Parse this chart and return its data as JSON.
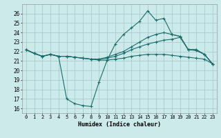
{
  "background_color": "#cceaea",
  "grid_color": "#aacccc",
  "line_color": "#1a6b6b",
  "xlabel": "Humidex (Indice chaleur)",
  "xlim": [
    -0.5,
    23.5
  ],
  "ylim": [
    15.5,
    27.0
  ],
  "yticks": [
    16,
    17,
    18,
    19,
    20,
    21,
    22,
    23,
    24,
    25,
    26
  ],
  "xticks": [
    0,
    1,
    2,
    3,
    4,
    5,
    6,
    7,
    8,
    9,
    10,
    11,
    12,
    13,
    14,
    15,
    16,
    17,
    18,
    19,
    20,
    21,
    22,
    23
  ],
  "series": [
    [
      22.2,
      21.8,
      21.5,
      21.7,
      21.5,
      17.0,
      16.5,
      16.3,
      16.2,
      18.8,
      21.1,
      22.8,
      23.8,
      24.5,
      25.2,
      26.3,
      25.3,
      25.5,
      23.8,
      23.6,
      22.2,
      22.2,
      21.7,
      20.7
    ],
    [
      22.2,
      21.8,
      21.5,
      21.7,
      21.5,
      21.5,
      21.4,
      21.3,
      21.2,
      21.1,
      21.1,
      21.2,
      21.3,
      21.5,
      21.6,
      21.7,
      21.7,
      21.7,
      21.6,
      21.5,
      21.4,
      21.3,
      21.2,
      20.7
    ],
    [
      22.2,
      21.8,
      21.5,
      21.7,
      21.5,
      21.5,
      21.4,
      21.3,
      21.2,
      21.2,
      21.3,
      21.5,
      21.8,
      22.2,
      22.5,
      22.8,
      23.0,
      23.2,
      23.3,
      23.5,
      22.2,
      22.1,
      21.7,
      20.7
    ],
    [
      22.2,
      21.8,
      21.5,
      21.7,
      21.5,
      21.5,
      21.4,
      21.3,
      21.2,
      21.2,
      21.4,
      21.7,
      22.0,
      22.5,
      23.0,
      23.5,
      23.8,
      24.0,
      23.8,
      23.6,
      22.2,
      22.2,
      21.7,
      20.7
    ]
  ]
}
